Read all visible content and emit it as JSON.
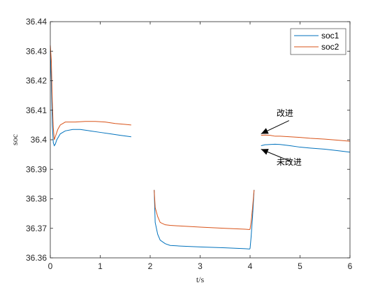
{
  "chart_data": {
    "type": "line",
    "title": "",
    "xlabel": "t/s",
    "ylabel": "soc",
    "xlim": [
      0,
      6
    ],
    "ylim": [
      36.36,
      36.44
    ],
    "xticks": [
      "0",
      "1",
      "2",
      "3",
      "4",
      "5",
      "6"
    ],
    "yticks": [
      "36.36",
      "36.37",
      "36.38",
      "36.39",
      "36.4",
      "36.41",
      "36.42",
      "36.43",
      "36.44"
    ],
    "grid": false,
    "legend": "top-right",
    "series": [
      {
        "name": "soc1",
        "color": "#0072BD",
        "segments": [
          [
            [
              0,
              36.43
            ],
            [
              0.02,
              36.42
            ],
            [
              0.04,
              36.405
            ],
            [
              0.06,
              36.399
            ],
            [
              0.08,
              36.398
            ],
            [
              0.1,
              36.3985
            ],
            [
              0.13,
              36.4
            ],
            [
              0.2,
              36.402
            ],
            [
              0.3,
              36.403
            ],
            [
              0.45,
              36.4035
            ],
            [
              0.6,
              36.4035
            ],
            [
              0.8,
              36.403
            ],
            [
              1.0,
              36.4025
            ],
            [
              1.2,
              36.402
            ],
            [
              1.4,
              36.4015
            ],
            [
              1.62,
              36.401
            ]
          ],
          [
            [
              2.08,
              36.383
            ],
            [
              2.1,
              36.372
            ],
            [
              2.15,
              36.368
            ],
            [
              2.2,
              36.366
            ],
            [
              2.3,
              36.3648
            ],
            [
              2.4,
              36.3642
            ],
            [
              2.6,
              36.364
            ],
            [
              3.0,
              36.3637
            ],
            [
              3.5,
              36.3634
            ],
            [
              3.9,
              36.3631
            ],
            [
              3.99,
              36.363
            ],
            [
              4.0,
              36.3632
            ],
            [
              4.02,
              36.367
            ],
            [
              4.05,
              36.374
            ],
            [
              4.08,
              36.383
            ]
          ],
          [
            [
              4.22,
              36.398
            ],
            [
              4.3,
              36.3983
            ],
            [
              4.4,
              36.3984
            ],
            [
              4.5,
              36.3985
            ],
            [
              4.6,
              36.3984
            ],
            [
              4.8,
              36.398
            ],
            [
              5.0,
              36.3975
            ],
            [
              5.2,
              36.3972
            ],
            [
              5.5,
              36.3968
            ],
            [
              5.8,
              36.3962
            ],
            [
              6.0,
              36.3958
            ]
          ]
        ]
      },
      {
        "name": "soc2",
        "color": "#D95319",
        "segments": [
          [
            [
              0,
              36.432
            ],
            [
              0.02,
              36.427
            ],
            [
              0.04,
              36.413
            ],
            [
              0.06,
              36.404
            ],
            [
              0.08,
              36.4
            ],
            [
              0.1,
              36.401
            ],
            [
              0.15,
              36.4035
            ],
            [
              0.2,
              36.405
            ],
            [
              0.3,
              36.406
            ],
            [
              0.5,
              36.406
            ],
            [
              0.7,
              36.4062
            ],
            [
              0.9,
              36.4062
            ],
            [
              1.1,
              36.406
            ],
            [
              1.3,
              36.4055
            ],
            [
              1.5,
              36.4052
            ],
            [
              1.62,
              36.405
            ]
          ],
          [
            [
              2.08,
              36.383
            ],
            [
              2.1,
              36.377
            ],
            [
              2.15,
              36.374
            ],
            [
              2.2,
              36.372
            ],
            [
              2.3,
              36.3712
            ],
            [
              2.4,
              36.371
            ],
            [
              2.6,
              36.3708
            ],
            [
              3.0,
              36.3704
            ],
            [
              3.5,
              36.37
            ],
            [
              3.9,
              36.3697
            ],
            [
              3.99,
              36.3696
            ],
            [
              4.0,
              36.3698
            ],
            [
              4.02,
              36.372
            ],
            [
              4.05,
              36.377
            ],
            [
              4.08,
              36.383
            ]
          ],
          [
            [
              4.22,
              36.4015
            ],
            [
              4.3,
              36.4016
            ],
            [
              4.4,
              36.4015
            ],
            [
              4.5,
              36.4012
            ],
            [
              4.6,
              36.4012
            ],
            [
              4.8,
              36.401
            ],
            [
              5.0,
              36.4008
            ],
            [
              5.2,
              36.4005
            ],
            [
              5.5,
              36.4002
            ],
            [
              5.8,
              36.3998
            ],
            [
              6.0,
              36.3995
            ]
          ]
        ]
      }
    ],
    "annotations": [
      {
        "text": "改进",
        "tx": 4.53,
        "ty": 36.408,
        "ax": 4.22,
        "ay": 36.402,
        "bx": 4.78,
        "by": 36.4065
      },
      {
        "text": "未改进",
        "tx": 4.53,
        "ty": 36.3915,
        "ax": 4.22,
        "ay": 36.3968,
        "bx": 4.82,
        "by": 36.3926
      }
    ]
  }
}
